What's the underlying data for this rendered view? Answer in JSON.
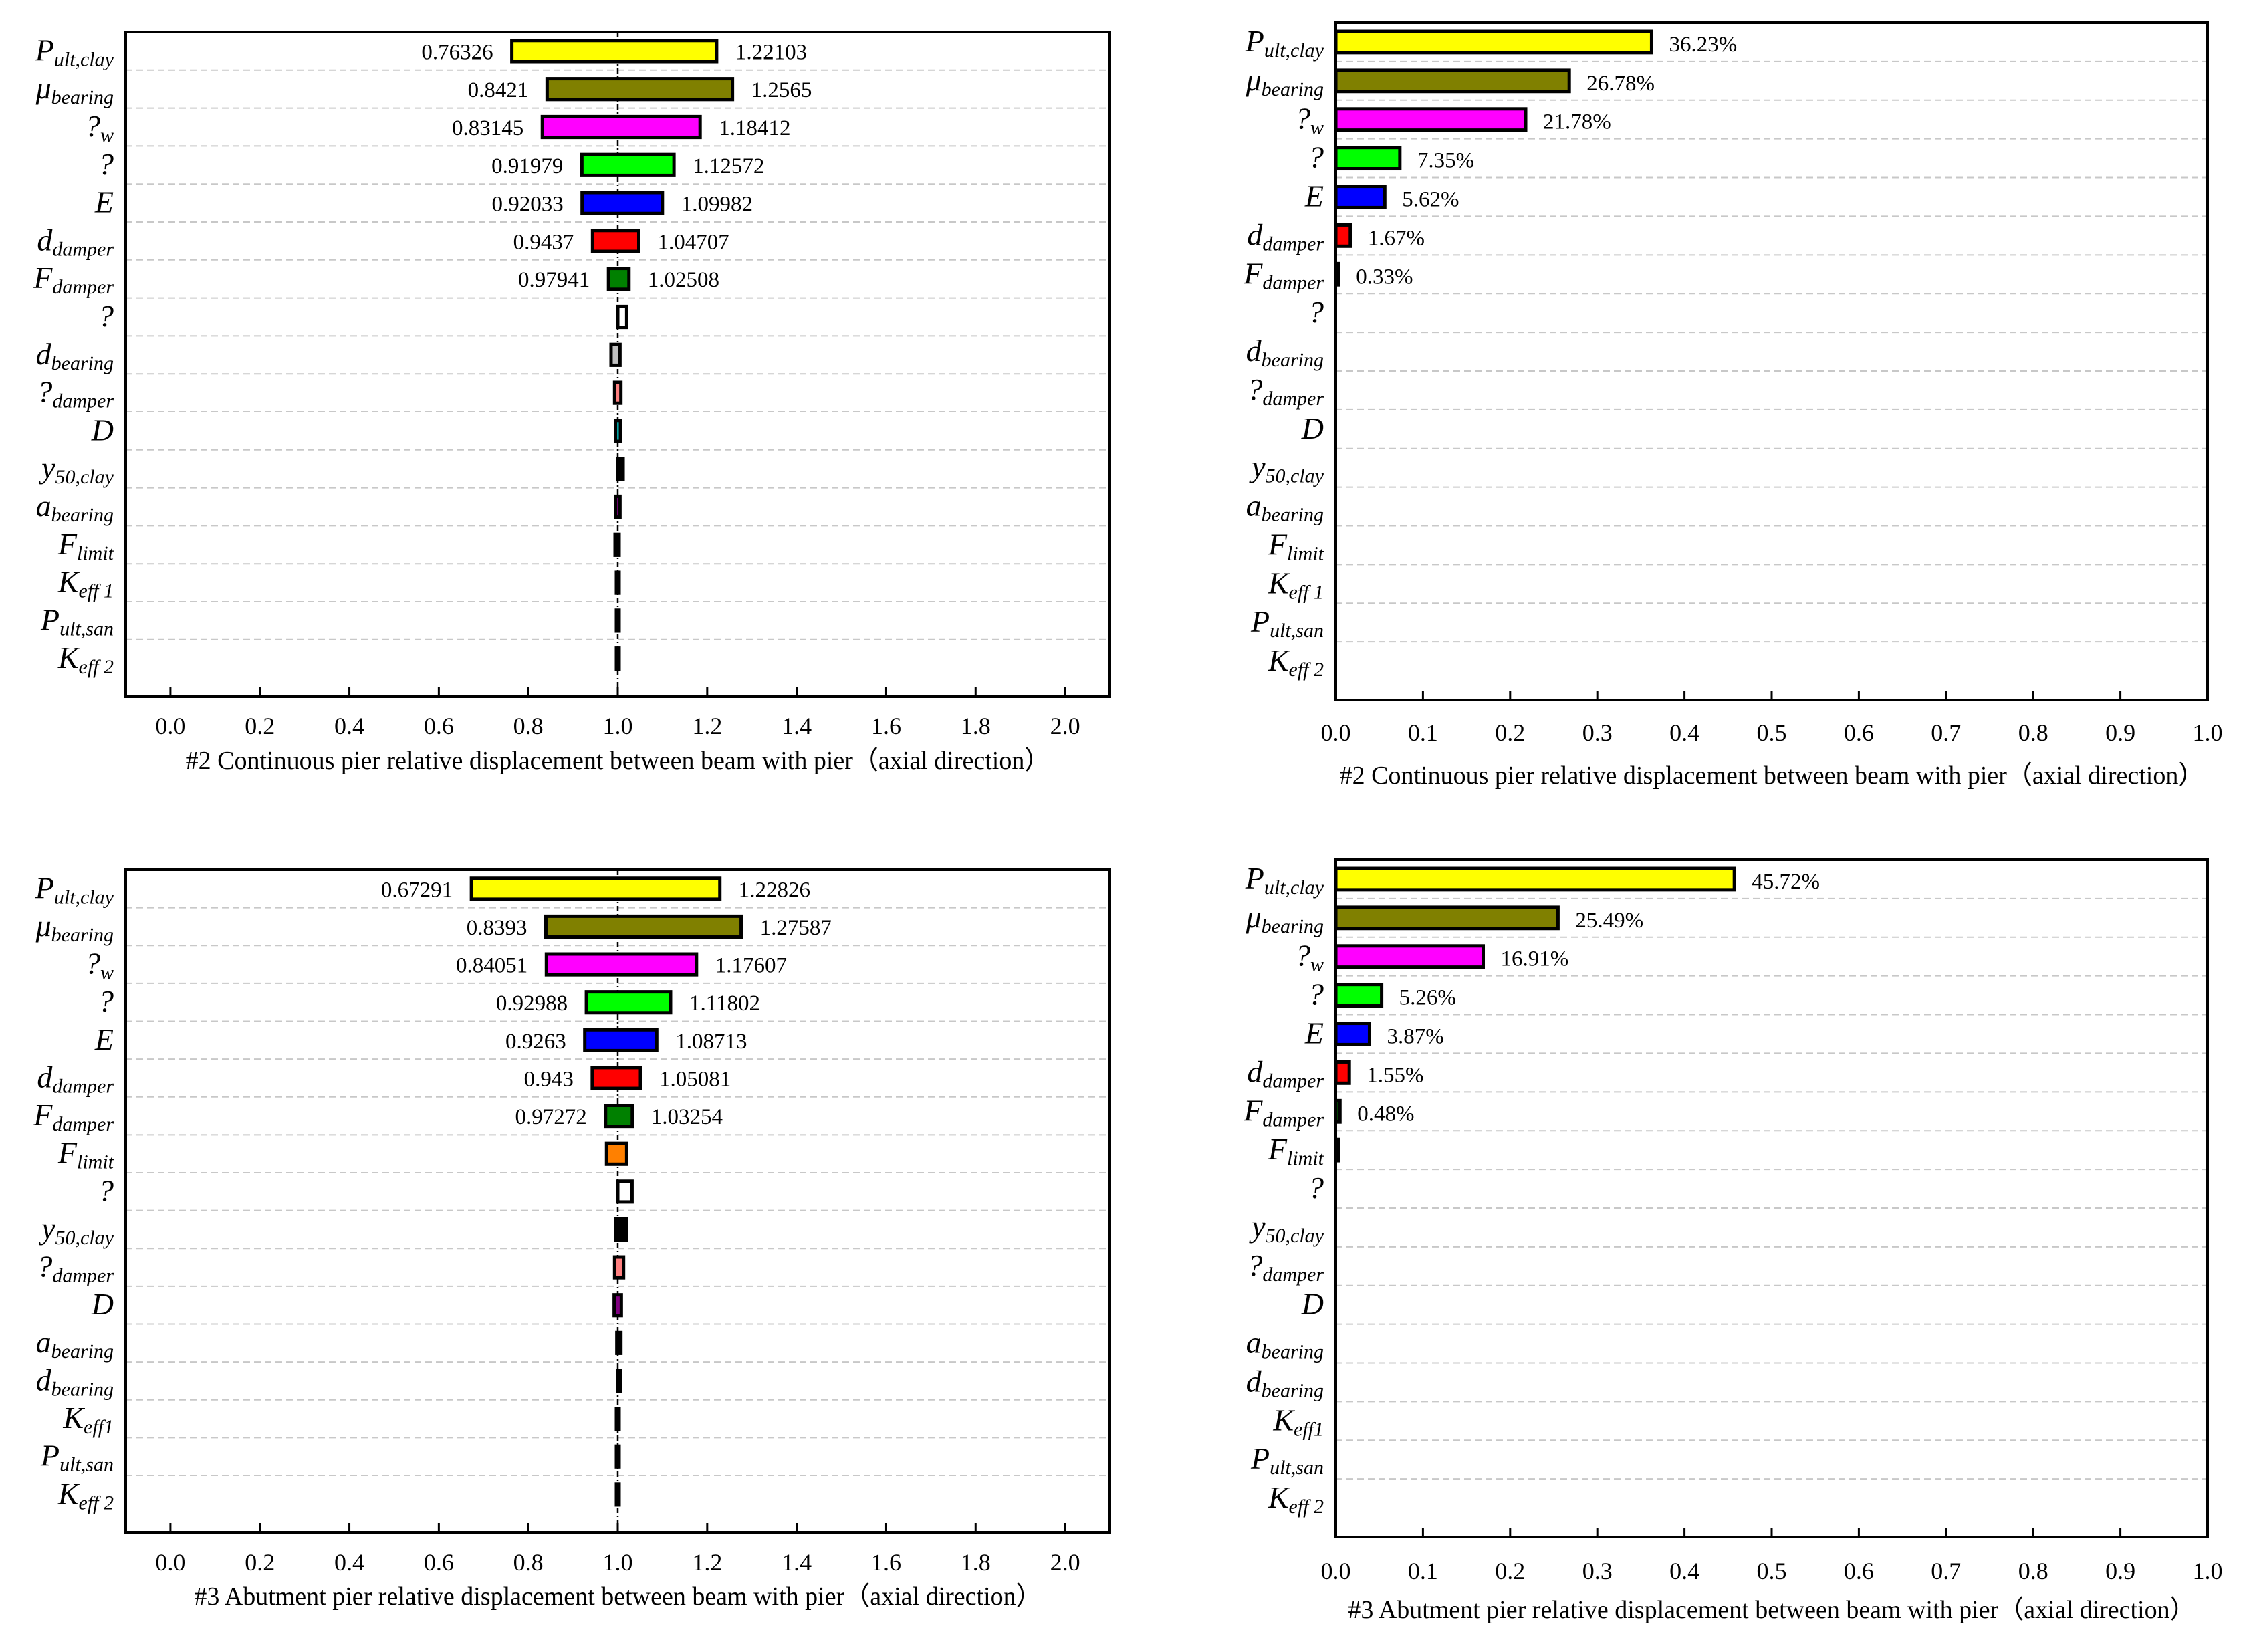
{
  "chart_data": [
    {
      "type": "tornado",
      "xlabel": "#2 Continuous pier relative displacement between beam with pier（axial direction）",
      "xticks": [
        "0.0",
        "0.2",
        "0.4",
        "0.6",
        "0.8",
        "1.0",
        "1.2",
        "1.4",
        "1.6",
        "1.8",
        "2.0"
      ],
      "xlim": [
        -0.1,
        2.1
      ],
      "baseline": 1.0,
      "rows": [
        {
          "main": "P",
          "sub": "ult,clay",
          "low": 0.76326,
          "high": 1.22103,
          "color": "#ffff00",
          "low_label": "0.76326",
          "high_label": "1.22103"
        },
        {
          "main": "μ",
          "sub": "bearing",
          "low": 0.8421,
          "high": 1.2565,
          "color": "#808000",
          "low_label": "0.8421",
          "high_label": "1.2565"
        },
        {
          "main": "?",
          "sub": "w",
          "low": 0.83145,
          "high": 1.18412,
          "color": "#ff00ff",
          "low_label": "0.83145",
          "high_label": "1.18412"
        },
        {
          "main": "?",
          "sub": "",
          "low": 0.91979,
          "high": 1.12572,
          "color": "#00ff00",
          "low_label": "0.91979",
          "high_label": "1.12572"
        },
        {
          "main": "E",
          "sub": "",
          "low": 0.92033,
          "high": 1.09982,
          "color": "#0000ff",
          "low_label": "0.92033",
          "high_label": "1.09982"
        },
        {
          "main": "d",
          "sub": "damper",
          "low": 0.9437,
          "high": 1.04707,
          "color": "#ff0000",
          "low_label": "0.9437",
          "high_label": "1.04707"
        },
        {
          "main": "F",
          "sub": "damper",
          "low": 0.97941,
          "high": 1.02508,
          "color": "#008000",
          "low_label": "0.97941",
          "high_label": "1.02508"
        },
        {
          "main": "?",
          "sub": "",
          "low": 1.0,
          "high": 1.02,
          "color": "#ffffff"
        },
        {
          "main": "d",
          "sub": "bearing",
          "low": 0.985,
          "high": 1.005,
          "color": "#c0c0c0"
        },
        {
          "main": "?",
          "sub": "damper",
          "low": 0.993,
          "high": 1.007,
          "color": "#ff8080"
        },
        {
          "main": "D",
          "sub": "",
          "low": 0.995,
          "high": 1.006,
          "color": "#00c0c0"
        },
        {
          "main": "y",
          "sub": "50,clay",
          "low": 1.0,
          "high": 1.012,
          "color": "#000000"
        },
        {
          "main": "a",
          "sub": "bearing",
          "low": 0.995,
          "high": 1.005,
          "color": "#800080"
        },
        {
          "main": "F",
          "sub": "limit",
          "low": 0.994,
          "high": 1.003,
          "color": "#000000"
        },
        {
          "main": "K",
          "sub": "eff 1",
          "low": 0.998,
          "high": 1.002,
          "color": "#000000"
        },
        {
          "main": "P",
          "sub": "ult,san",
          "low": 1.0,
          "high": 1.0,
          "color": "#000000"
        },
        {
          "main": "K",
          "sub": "eff 2",
          "low": 1.0,
          "high": 1.0,
          "color": "#000000"
        }
      ]
    },
    {
      "type": "bar",
      "orientation": "horizontal",
      "xlabel": "#2 Continuous pier relative displacement between beam with pier（axial direction）",
      "xticks": [
        "0.0",
        "0.1",
        "0.2",
        "0.3",
        "0.4",
        "0.5",
        "0.6",
        "0.7",
        "0.8",
        "0.9",
        "1.0"
      ],
      "xlim": [
        0,
        1.0
      ],
      "rows": [
        {
          "main": "P",
          "sub": "ult,clay",
          "value": 0.3623,
          "label": "36.23%",
          "color": "#ffff00"
        },
        {
          "main": "μ",
          "sub": "bearing",
          "value": 0.2678,
          "label": "26.78%",
          "color": "#808000"
        },
        {
          "main": "?",
          "sub": "w",
          "value": 0.2178,
          "label": "21.78%",
          "color": "#ff00ff"
        },
        {
          "main": "?",
          "sub": "",
          "value": 0.0735,
          "label": "7.35%",
          "color": "#00ff00"
        },
        {
          "main": "E",
          "sub": "",
          "value": 0.0562,
          "label": "5.62%",
          "color": "#0000ff"
        },
        {
          "main": "d",
          "sub": "damper",
          "value": 0.0167,
          "label": "1.67%",
          "color": "#ff0000"
        },
        {
          "main": "F",
          "sub": "damper",
          "value": 0.0033,
          "label": "0.33%",
          "color": "#008000"
        },
        {
          "main": "?",
          "sub": "",
          "value": 0
        },
        {
          "main": "d",
          "sub": "bearing",
          "value": 0
        },
        {
          "main": "?",
          "sub": "damper",
          "value": 0
        },
        {
          "main": "D",
          "sub": "",
          "value": 0
        },
        {
          "main": "y",
          "sub": "50,clay",
          "value": 0
        },
        {
          "main": "a",
          "sub": "bearing",
          "value": 0
        },
        {
          "main": "F",
          "sub": "limit",
          "value": 0
        },
        {
          "main": "K",
          "sub": "eff 1",
          "value": 0
        },
        {
          "main": "P",
          "sub": "ult,san",
          "value": 0
        },
        {
          "main": "K",
          "sub": "eff 2",
          "value": 0
        }
      ]
    },
    {
      "type": "tornado",
      "xlabel": "#3 Abutment pier relative displacement between beam with pier（axial direction）",
      "xticks": [
        "0.0",
        "0.2",
        "0.4",
        "0.6",
        "0.8",
        "1.0",
        "1.2",
        "1.4",
        "1.6",
        "1.8",
        "2.0"
      ],
      "xlim": [
        -0.1,
        2.1
      ],
      "baseline": 1.0,
      "rows": [
        {
          "main": "P",
          "sub": "ult,clay",
          "low": 0.67291,
          "high": 1.22826,
          "color": "#ffff00",
          "low_label": "0.67291",
          "high_label": "1.22826"
        },
        {
          "main": "μ",
          "sub": "bearing",
          "low": 0.8393,
          "high": 1.27587,
          "color": "#808000",
          "low_label": "0.8393",
          "high_label": "1.27587"
        },
        {
          "main": "?",
          "sub": "w",
          "low": 0.84051,
          "high": 1.17607,
          "color": "#ff00ff",
          "low_label": "0.84051",
          "high_label": "1.17607"
        },
        {
          "main": "?",
          "sub": "",
          "low": 0.92988,
          "high": 1.11802,
          "color": "#00ff00",
          "low_label": "0.92988",
          "high_label": "1.11802"
        },
        {
          "main": "E",
          "sub": "",
          "low": 0.9263,
          "high": 1.08713,
          "color": "#0000ff",
          "low_label": "0.9263",
          "high_label": "1.08713"
        },
        {
          "main": "d",
          "sub": "damper",
          "low": 0.943,
          "high": 1.05081,
          "color": "#ff0000",
          "low_label": "0.943",
          "high_label": "1.05081"
        },
        {
          "main": "F",
          "sub": "damper",
          "low": 0.97272,
          "high": 1.03254,
          "color": "#008000",
          "low_label": "0.97272",
          "high_label": "1.03254"
        },
        {
          "main": "F",
          "sub": "limit",
          "low": 0.975,
          "high": 1.02,
          "color": "#ff8000"
        },
        {
          "main": "?",
          "sub": "",
          "low": 1.0,
          "high": 1.032,
          "color": "#ffffff"
        },
        {
          "main": "y",
          "sub": "50,clay",
          "low": 0.995,
          "high": 1.02,
          "color": "#000000"
        },
        {
          "main": "?",
          "sub": "damper",
          "low": 0.993,
          "high": 1.013,
          "color": "#ff8080"
        },
        {
          "main": "D",
          "sub": "",
          "low": 0.992,
          "high": 1.008,
          "color": "#800080"
        },
        {
          "main": "a",
          "sub": "bearing",
          "low": 0.998,
          "high": 1.007,
          "color": "#000000"
        },
        {
          "main": "d",
          "sub": "bearing",
          "low": 1.0,
          "high": 1.005,
          "color": "#808080"
        },
        {
          "main": "K",
          "sub": "eff1",
          "low": 0.998,
          "high": 1.002,
          "color": "#000000"
        },
        {
          "main": "P",
          "sub": "ult,san",
          "low": 1.0,
          "high": 1.0,
          "color": "#000000"
        },
        {
          "main": "K",
          "sub": "eff 2",
          "low": 1.0,
          "high": 1.0,
          "color": "#000000"
        }
      ]
    },
    {
      "type": "bar",
      "orientation": "horizontal",
      "xlabel": "#3 Abutment pier relative displacement between beam with pier（axial direction）",
      "xticks": [
        "0.0",
        "0.1",
        "0.2",
        "0.3",
        "0.4",
        "0.5",
        "0.6",
        "0.7",
        "0.8",
        "0.9",
        "1.0"
      ],
      "xlim": [
        0,
        1.0
      ],
      "rows": [
        {
          "main": "P",
          "sub": "ult,clay",
          "value": 0.4572,
          "label": "45.72%",
          "color": "#ffff00"
        },
        {
          "main": "μ",
          "sub": "bearing",
          "value": 0.2549,
          "label": "25.49%",
          "color": "#808000"
        },
        {
          "main": "?",
          "sub": "w",
          "value": 0.1691,
          "label": "16.91%",
          "color": "#ff00ff"
        },
        {
          "main": "?",
          "sub": "",
          "value": 0.0526,
          "label": "5.26%",
          "color": "#00ff00"
        },
        {
          "main": "E",
          "sub": "",
          "value": 0.0387,
          "label": "3.87%",
          "color": "#0000ff"
        },
        {
          "main": "d",
          "sub": "damper",
          "value": 0.0155,
          "label": "1.55%",
          "color": "#ff0000"
        },
        {
          "main": "F",
          "sub": "damper",
          "value": 0.0048,
          "label": "0.48%",
          "color": "#008000"
        },
        {
          "main": "F",
          "sub": "limit",
          "value": 0.003,
          "color": "#000000"
        },
        {
          "main": "?",
          "sub": "",
          "value": 0
        },
        {
          "main": "y",
          "sub": "50,clay",
          "value": 0
        },
        {
          "main": "?",
          "sub": "damper",
          "value": 0
        },
        {
          "main": "D",
          "sub": "",
          "value": 0
        },
        {
          "main": "a",
          "sub": "bearing",
          "value": 0
        },
        {
          "main": "d",
          "sub": "bearing",
          "value": 0
        },
        {
          "main": "K",
          "sub": "eff1",
          "value": 0
        },
        {
          "main": "P",
          "sub": "ult,san",
          "value": 0
        },
        {
          "main": "K",
          "sub": "eff 2",
          "value": 0
        }
      ]
    }
  ]
}
